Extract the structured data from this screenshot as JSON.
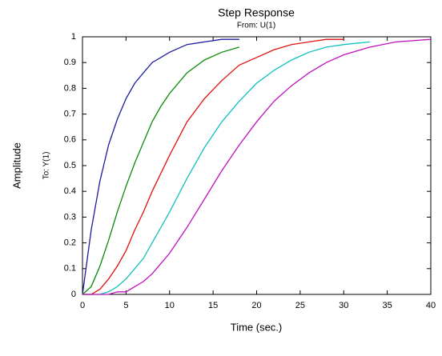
{
  "chart_data": {
    "type": "line",
    "title": "Step Response",
    "subtitle": "From: U(1)",
    "x_label": "Time (sec.)",
    "y_label": "Amplitude",
    "output_label": "To: Y(1)",
    "x": [
      0,
      1,
      2,
      3,
      4,
      5,
      6,
      7,
      8,
      9,
      10,
      12,
      14,
      16,
      18,
      20,
      22,
      24,
      26,
      28,
      30,
      33,
      36,
      40
    ],
    "series": [
      {
        "color": "#1c1ca0",
        "values": [
          0,
          0.25,
          0.44,
          0.58,
          0.68,
          0.76,
          0.82,
          0.86,
          0.9,
          0.92,
          0.94,
          0.97,
          0.98,
          0.99,
          0.99,
          null,
          null,
          null,
          null,
          null,
          null,
          null,
          null,
          null
        ]
      },
      {
        "color": "#0a8a0a",
        "values": [
          0,
          0.03,
          0.11,
          0.21,
          0.32,
          0.42,
          0.51,
          0.59,
          0.67,
          0.73,
          0.78,
          0.86,
          0.91,
          0.94,
          0.96,
          null,
          null,
          null,
          null,
          null,
          null,
          null,
          null,
          null
        ]
      },
      {
        "color": "#e01010",
        "values": [
          0,
          0,
          0.02,
          0.06,
          0.11,
          0.17,
          0.25,
          0.32,
          0.4,
          0.47,
          0.54,
          0.67,
          0.76,
          0.83,
          0.89,
          0.92,
          0.95,
          0.97,
          0.98,
          0.99,
          0.99,
          null,
          null,
          null
        ]
      },
      {
        "color": "#10c0c0",
        "values": [
          0,
          0,
          0,
          0.01,
          0.03,
          0.06,
          0.1,
          0.14,
          0.2,
          0.26,
          0.32,
          0.45,
          0.57,
          0.67,
          0.75,
          0.82,
          0.87,
          0.91,
          0.94,
          0.96,
          0.97,
          0.98,
          null,
          null
        ]
      },
      {
        "color": "#c010c0",
        "values": [
          0,
          0,
          0,
          0,
          0.01,
          0.01,
          0.03,
          0.05,
          0.08,
          0.12,
          0.16,
          0.26,
          0.37,
          0.48,
          0.58,
          0.67,
          0.75,
          0.81,
          0.86,
          0.9,
          0.93,
          0.96,
          0.98,
          0.99
        ]
      }
    ],
    "xlim": [
      0,
      40
    ],
    "xticks": [
      0,
      5,
      10,
      15,
      20,
      25,
      30,
      35,
      40
    ],
    "ylim": [
      0,
      1
    ],
    "yticks": [
      0,
      0.1,
      0.2,
      0.3,
      0.4,
      0.5,
      0.6,
      0.7,
      0.8,
      0.9,
      1
    ]
  }
}
